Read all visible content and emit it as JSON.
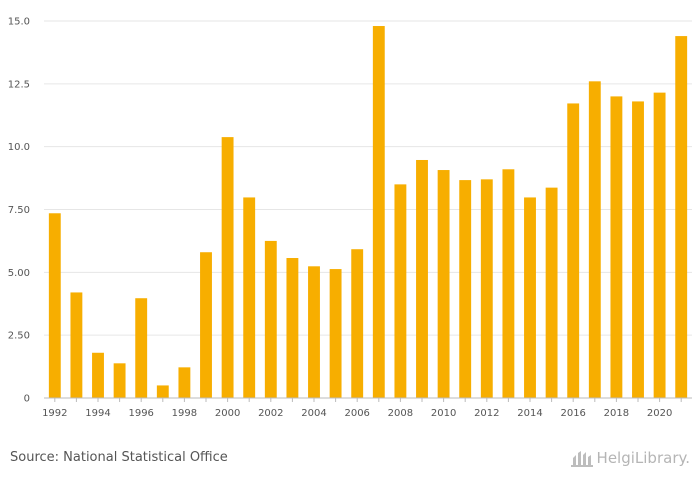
{
  "chart_data": {
    "type": "bar",
    "categories": [
      "1992",
      "1993",
      "1994",
      "1995",
      "1996",
      "1997",
      "1998",
      "1999",
      "2000",
      "2001",
      "2002",
      "2003",
      "2004",
      "2005",
      "2006",
      "2007",
      "2008",
      "2009",
      "2010",
      "2011",
      "2012",
      "2013",
      "2014",
      "2015",
      "2016",
      "2017",
      "2018",
      "2019",
      "2020",
      "2021"
    ],
    "values": [
      7.35,
      4.2,
      1.8,
      1.38,
      3.97,
      0.5,
      1.22,
      5.8,
      10.38,
      7.98,
      6.25,
      5.57,
      5.24,
      5.13,
      5.92,
      14.8,
      8.5,
      9.47,
      9.07,
      8.67,
      8.7,
      9.1,
      7.98,
      8.37,
      11.72,
      12.6,
      12.0,
      11.8,
      12.15,
      14.4
    ],
    "x_tick_labels": [
      "1992",
      "1994",
      "1996",
      "1998",
      "2000",
      "2002",
      "2004",
      "2006",
      "2008",
      "2010",
      "2012",
      "2014",
      "2016",
      "2018",
      "2020"
    ],
    "y_tick_labels": [
      "0",
      "2.50",
      "5.00",
      "7.50",
      "10.0",
      "12.5",
      "15.0"
    ],
    "y_ticks": [
      0,
      2.5,
      5.0,
      7.5,
      10.0,
      12.5,
      15.0
    ],
    "ylim": [
      0,
      15
    ],
    "title": "",
    "xlabel": "",
    "ylabel": "",
    "grid": true,
    "bar_color": "#f7ae00"
  },
  "footer": {
    "source": "Source: National Statistical Office",
    "brand": "HelgiLibrary."
  },
  "icons": {
    "brand_icon": "library-logo-icon"
  }
}
